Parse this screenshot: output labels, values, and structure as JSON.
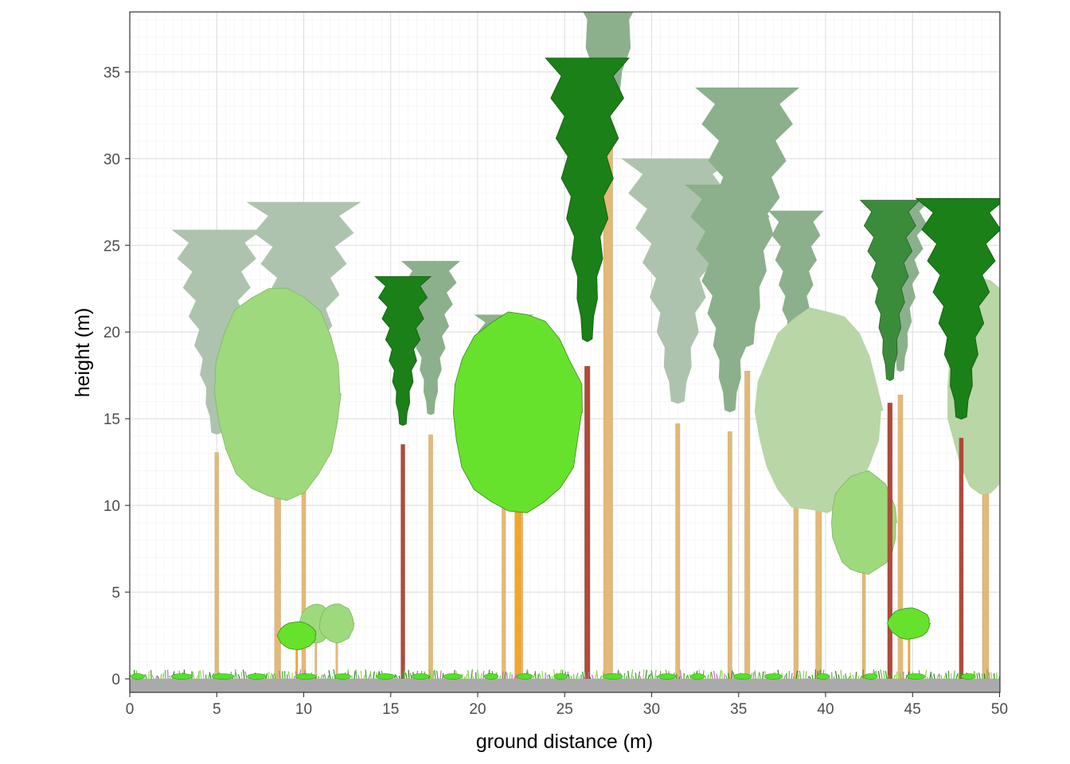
{
  "chart_data": {
    "type": "scatter",
    "title": "",
    "xlabel": "ground distance (m)",
    "ylabel": "height (m)",
    "xlim": [
      0,
      50
    ],
    "ylim": [
      -1,
      38
    ],
    "x_ticks": [
      0,
      5,
      10,
      15,
      20,
      25,
      30,
      35,
      40,
      45,
      50
    ],
    "y_ticks": [
      0,
      5,
      10,
      15,
      20,
      25,
      30,
      35
    ],
    "x_tick_labels": [
      "0",
      "5",
      "10",
      "15",
      "20",
      "25",
      "30",
      "35",
      "40",
      "45",
      "50"
    ],
    "y_tick_labels": [
      "0",
      "5",
      "10",
      "15",
      "20",
      "25",
      "30",
      "35"
    ],
    "grid": true,
    "legend": "none",
    "colors": {
      "ground": "#aaaaaa",
      "conifer_far": "#aec3ae",
      "conifer_mid": "#8bb08b",
      "conifer_near": "#1a8017",
      "conifer_near2": "#3a8c3a",
      "broadleaf_light": "#9ed97d",
      "broadleaf_pale": "#b8d6a6",
      "broadleaf_bright": "#66e22c",
      "trunk_tan": "#e3b978",
      "trunk_orange": "#f5a623",
      "trunk_red": "#b04a3a"
    },
    "series": [
      {
        "type": "conifer_far",
        "points": [
          {
            "x": 5.0,
            "height": 14.2,
            "crown_base": 2.5,
            "crown_width": 5.2
          },
          {
            "x": 10.0,
            "height": 15.0,
            "crown_base": 2.5,
            "crown_width": 6.6
          },
          {
            "x": 22.5,
            "height": 13.0,
            "crown_base": 7.5,
            "crown_width": 3.6
          },
          {
            "x": 31.5,
            "height": 16.0,
            "crown_base": 2.0,
            "crown_width": 6.5
          }
        ]
      },
      {
        "type": "conifer_mid",
        "points": [
          {
            "x": 17.3,
            "height": 15.3,
            "crown_base": 6.5,
            "crown_width": 3.4
          },
          {
            "x": 21.5,
            "height": 14.0,
            "crown_base": 7.0,
            "crown_width": 3.4
          },
          {
            "x": 27.5,
            "height": 33.4,
            "crown_base": 12.5,
            "crown_width": 10.5
          },
          {
            "x": 34.5,
            "height": 15.5,
            "crown_base": 2.5,
            "crown_width": 5.2
          },
          {
            "x": 35.5,
            "height": 19.3,
            "crown_base": 4.5,
            "crown_width": 6.0
          },
          {
            "x": 38.3,
            "height": 17.0,
            "crown_base": 7.0,
            "crown_width": 3.2
          },
          {
            "x": 44.3,
            "height": 17.8,
            "crown_base": 8.0,
            "crown_width": 3.5
          }
        ]
      },
      {
        "type": "conifer_near",
        "points": [
          {
            "x": 15.7,
            "height": 14.7,
            "crown_base": 6.2,
            "crown_width": 3.2
          },
          {
            "x": 26.3,
            "height": 19.6,
            "crown_base": 3.4,
            "crown_width": 4.8
          },
          {
            "x": 47.8,
            "height": 15.1,
            "crown_base": 2.5,
            "crown_width": 5.2
          }
        ]
      },
      {
        "type": "conifer_near2",
        "points": [
          {
            "x": 43.7,
            "height": 17.3,
            "crown_base": 7.0,
            "crown_width": 3.4
          }
        ]
      },
      {
        "type": "broadleaf_light",
        "points": [
          {
            "x": 8.5,
            "height": 22.6,
            "crown_base": 10.3,
            "crown_width": 7.3
          },
          {
            "x": 10.7,
            "height": 4.3,
            "crown_base": 2.1,
            "crown_width": 1.9
          },
          {
            "x": 11.9,
            "height": 4.3,
            "crown_base": 2.1,
            "crown_width": 2.0
          },
          {
            "x": 42.2,
            "height": 12.0,
            "crown_base": 6.0,
            "crown_width": 3.8
          }
        ]
      },
      {
        "type": "broadleaf_pale",
        "points": [
          {
            "x": 39.6,
            "height": 21.4,
            "crown_base": 9.5,
            "crown_width": 7.2
          },
          {
            "x": 49.2,
            "height": 23.1,
            "crown_base": 10.6,
            "crown_width": 4.4
          }
        ]
      },
      {
        "type": "broadleaf_bright",
        "points": [
          {
            "x": 9.6,
            "height": 3.3,
            "crown_base": 1.7,
            "crown_width": 2.2
          },
          {
            "x": 22.3,
            "height": 21.0,
            "crown_base": 9.7,
            "crown_width": 7.4
          },
          {
            "x": 44.8,
            "height": 4.1,
            "crown_base": 2.3,
            "crown_width": 2.4
          }
        ]
      }
    ]
  }
}
